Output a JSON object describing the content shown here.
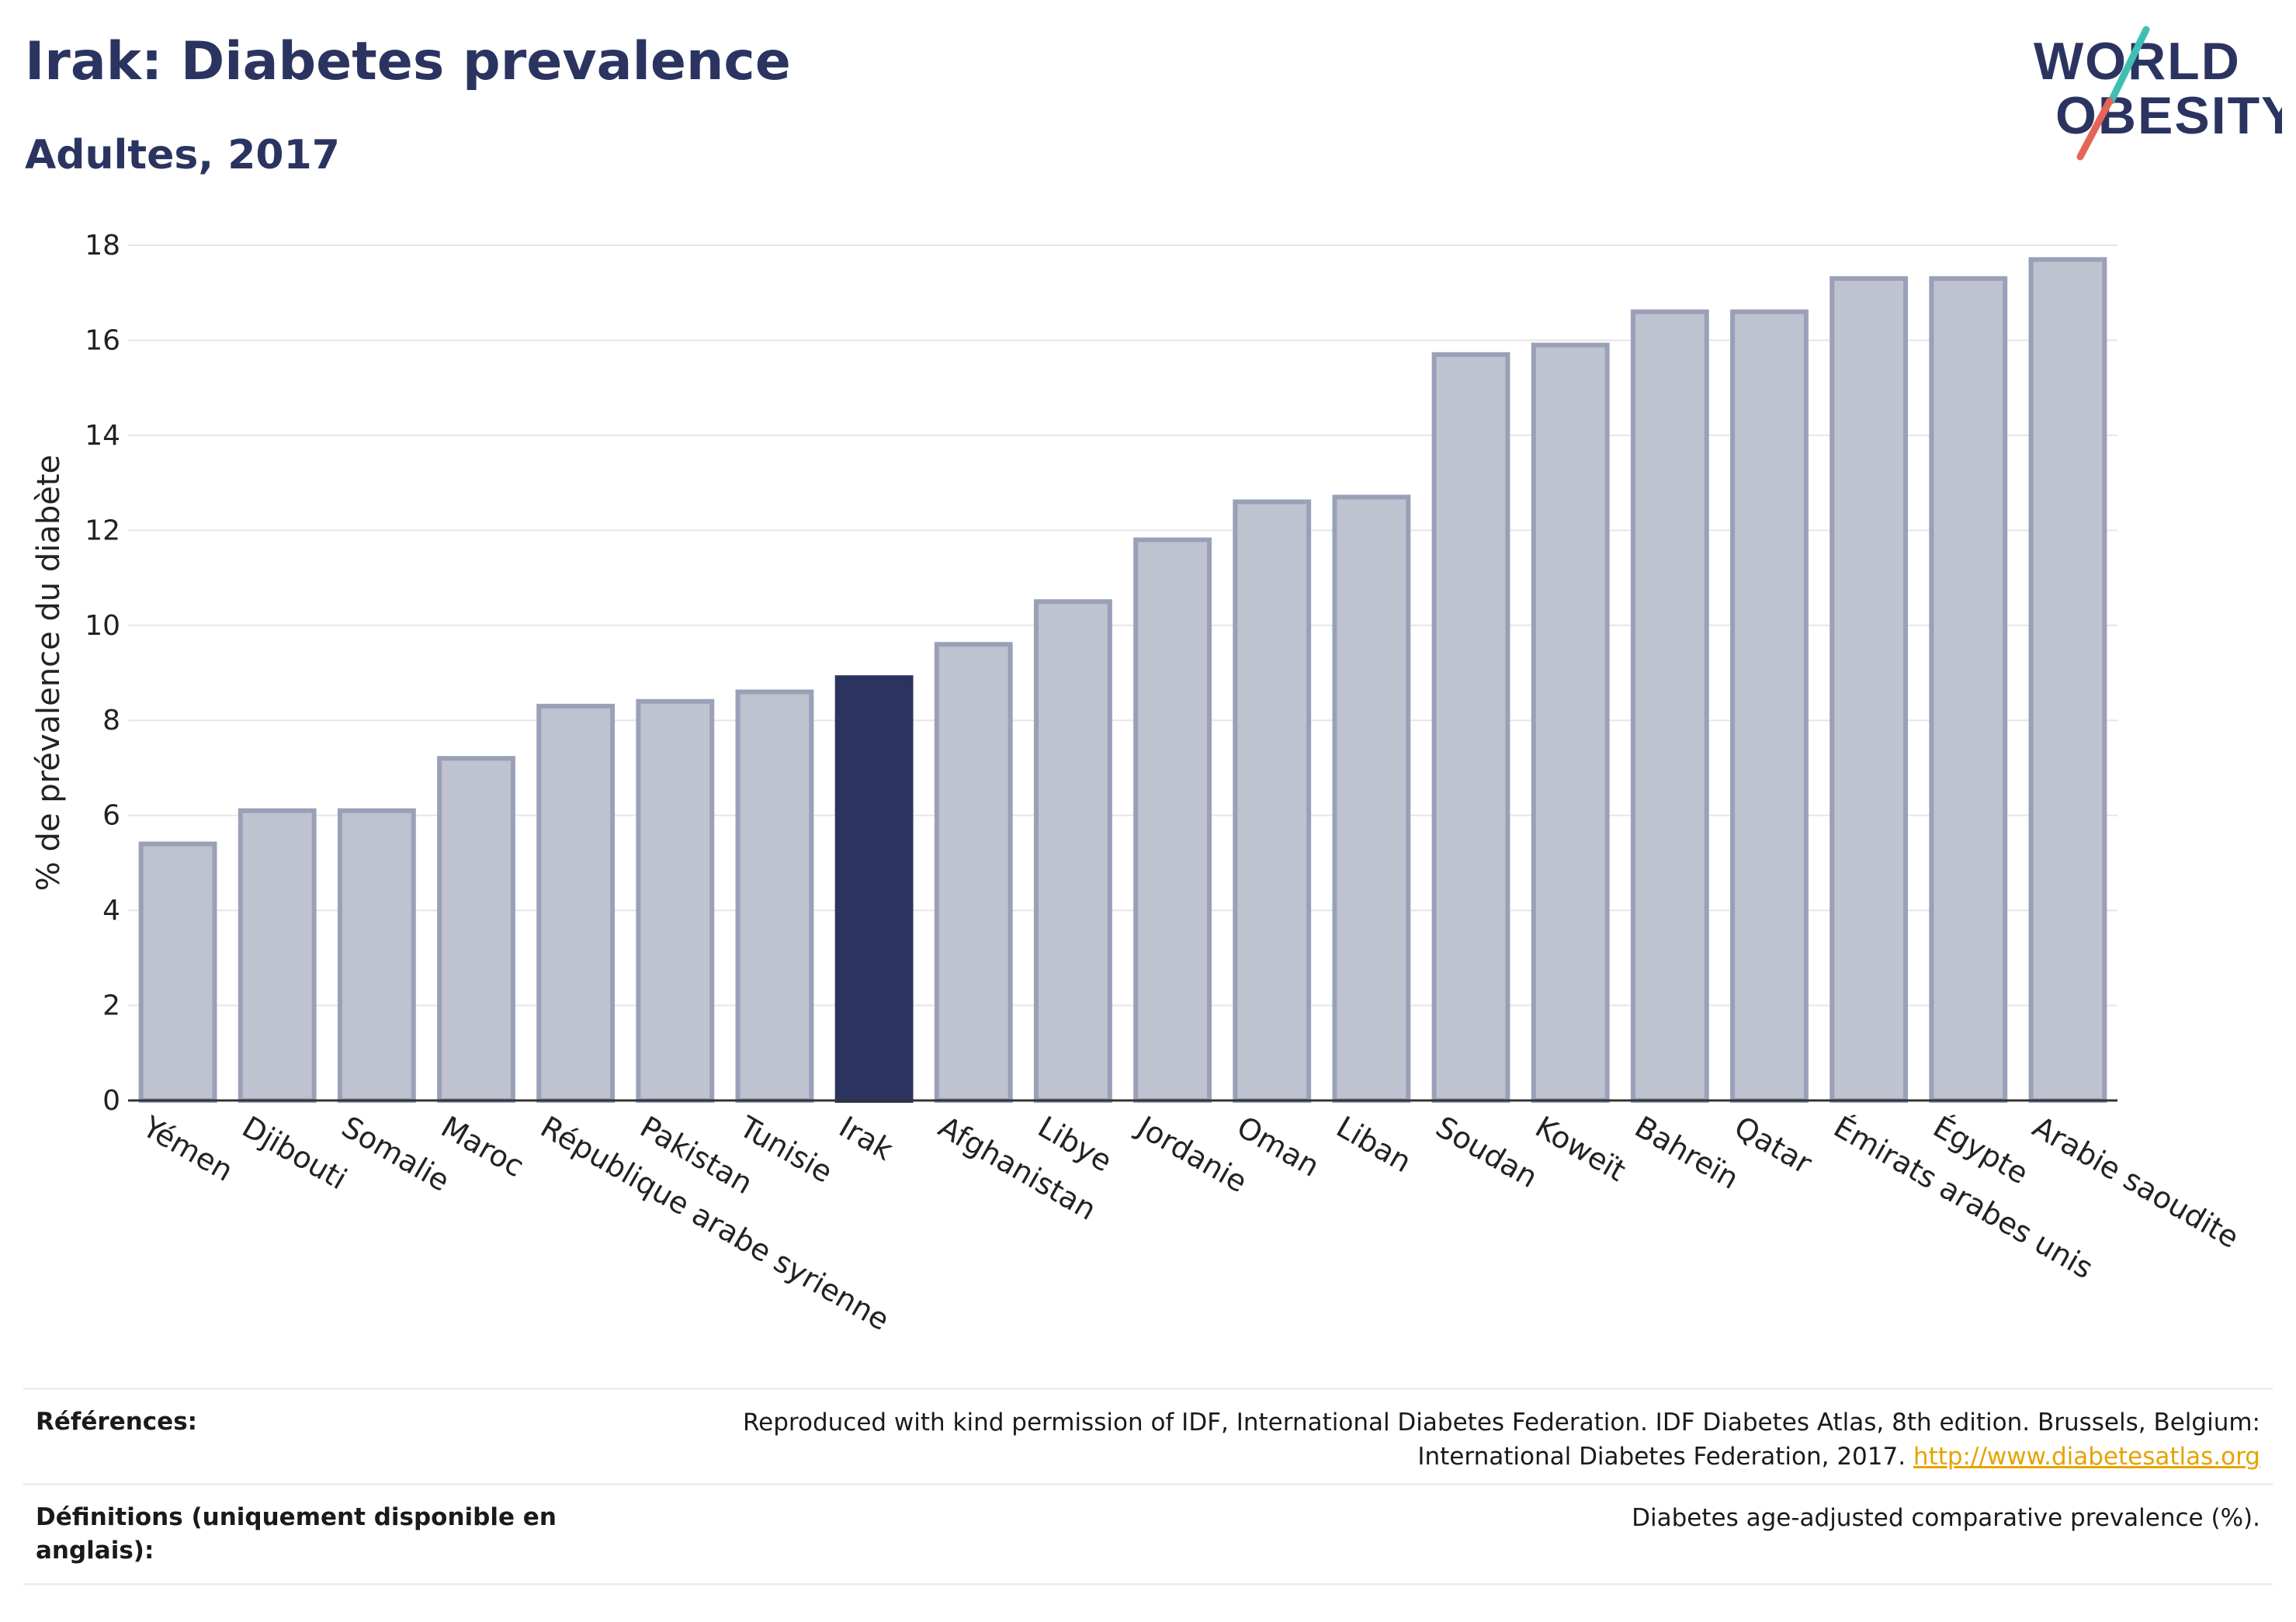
{
  "header": {
    "title": "Irak: Diabetes prevalence",
    "subtitle": "Adultes, 2017"
  },
  "logo": {
    "line1": "WORLD",
    "line2": "OBESITY",
    "accent_teal": "#3fbfb4",
    "accent_coral": "#e5655a",
    "text_color": "#2b3460"
  },
  "colors": {
    "bar_fill": "#bfc2cf",
    "bar_stroke": "#9aa0b8",
    "highlight": "#2b3460",
    "grid": "#e6e6e6",
    "axis": "#333333"
  },
  "chart_data": {
    "type": "bar",
    "ylabel": "% de prévalence du diabète",
    "ylim": [
      0,
      18
    ],
    "yticks": [
      0,
      2,
      4,
      6,
      8,
      10,
      12,
      14,
      16,
      18
    ],
    "grid": true,
    "highlight": "Irak",
    "categories": [
      "Yémen",
      "Djibouti",
      "Somalie",
      "Maroc",
      "République arabe syrienne",
      "Pakistan",
      "Tunisie",
      "Irak",
      "Afghanistan",
      "Libye",
      "Jordanie",
      "Oman",
      "Liban",
      "Soudan",
      "Koweït",
      "Bahreïn",
      "Qatar",
      "Émirats arabes unis",
      "Égypte",
      "Arabie saoudite"
    ],
    "values": [
      5.4,
      6.1,
      6.1,
      7.2,
      8.3,
      8.4,
      8.6,
      8.9,
      9.6,
      10.5,
      11.8,
      12.6,
      12.7,
      15.7,
      15.9,
      16.6,
      16.6,
      17.3,
      17.3,
      17.7
    ]
  },
  "references": {
    "refs_label": "Références:",
    "refs_text_line1": "Reproduced with kind permission of IDF, International Diabetes Federation. IDF Diabetes Atlas, 8th edition. Brussels, Belgium:",
    "refs_text_line2": "International Diabetes Federation, 2017. ",
    "refs_link": "http://www.diabetesatlas.org",
    "defs_label": "Définitions (uniquement disponible en anglais):",
    "defs_text": "Diabetes age-adjusted comparative prevalence (%)."
  }
}
